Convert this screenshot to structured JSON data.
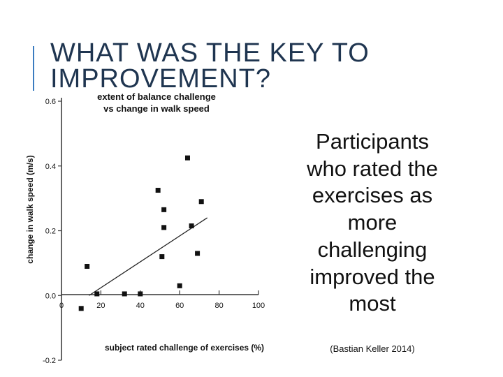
{
  "slide": {
    "title": "WHAT WAS THE KEY TO\nIMPROVEMENT?",
    "body_text": "Participants who rated the exercises as more challenging improved the most",
    "citation": "(Bastian Keller 2014)",
    "accent_color": "#3b7cc0"
  },
  "chart_data": {
    "type": "scatter",
    "title": "extent of balance challenge vs change in walk speed",
    "title_lines": [
      "extent of balance challenge",
      "vs change in walk speed"
    ],
    "xlabel": "subject rated challenge of exercises (%)",
    "ylabel": "change in walk speed (m/s)",
    "xlim": [
      0,
      100
    ],
    "ylim": [
      -0.2,
      0.6
    ],
    "xticks": [
      0,
      20,
      40,
      60,
      80,
      100
    ],
    "yticks": [
      -0.2,
      0.0,
      0.2,
      0.4,
      0.6
    ],
    "xtick_labels": [
      "0",
      "20",
      "40",
      "60",
      "80",
      "100"
    ],
    "ytick_labels": [
      "-0.2",
      "0.0",
      "0.2",
      "0.4",
      "0.6"
    ],
    "grid": false,
    "points": [
      {
        "x": 10,
        "y": -0.04
      },
      {
        "x": 13,
        "y": 0.09
      },
      {
        "x": 18,
        "y": 0.005
      },
      {
        "x": 32,
        "y": 0.005
      },
      {
        "x": 40,
        "y": 0.005
      },
      {
        "x": 49,
        "y": 0.325
      },
      {
        "x": 51,
        "y": 0.12
      },
      {
        "x": 52,
        "y": 0.265
      },
      {
        "x": 52,
        "y": 0.21
      },
      {
        "x": 60,
        "y": 0.03
      },
      {
        "x": 64,
        "y": 0.425
      },
      {
        "x": 66,
        "y": 0.215
      },
      {
        "x": 69,
        "y": 0.13
      },
      {
        "x": 71,
        "y": 0.29
      }
    ],
    "trendline": {
      "x": [
        14,
        74
      ],
      "y": [
        0.0,
        0.24
      ]
    },
    "marker_color": "#111111"
  }
}
